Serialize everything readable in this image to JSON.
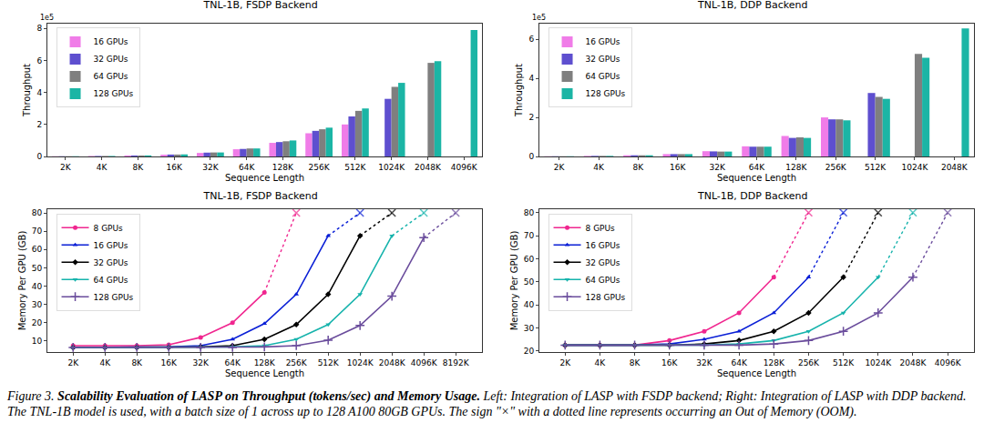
{
  "chart_data": [
    {
      "type": "bar",
      "title": "TNL-1B, FSDP Backend",
      "x_label": "Sequence Length",
      "y_label": "Throughput",
      "annotations": [
        {
          "text": "1e5"
        }
      ],
      "categories": [
        "2K",
        "4K",
        "8K",
        "16K",
        "32K",
        "64K",
        "128K",
        "256K",
        "512K",
        "1024K",
        "2048K",
        "4096K"
      ],
      "series": [
        {
          "name": "16 GPUs",
          "color": "#f07ce8",
          "values": [
            0.015,
            0.03,
            0.06,
            0.11,
            0.22,
            0.45,
            0.85,
            1.45,
            2.0,
            null,
            null,
            null
          ]
        },
        {
          "name": "32 GPUs",
          "color": "#5e4fcf",
          "values": [
            0.015,
            0.03,
            0.06,
            0.12,
            0.24,
            0.47,
            0.9,
            1.6,
            2.5,
            3.6,
            null,
            null
          ]
        },
        {
          "name": "64 GPUs",
          "color": "#7f7f7f",
          "values": [
            0.015,
            0.03,
            0.06,
            0.12,
            0.25,
            0.5,
            0.95,
            1.7,
            2.85,
            4.35,
            5.85,
            null
          ]
        },
        {
          "name": "128 GPUs",
          "color": "#1bb5a5",
          "values": [
            0.015,
            0.03,
            0.065,
            0.13,
            0.25,
            0.5,
            1.0,
            1.8,
            3.0,
            4.6,
            5.95,
            7.9
          ]
        }
      ],
      "ylim": [
        0,
        8.3
      ],
      "yticks": [
        0,
        2,
        4,
        6,
        8
      ],
      "grid": false,
      "legend": "upper left"
    },
    {
      "type": "bar",
      "title": "TNL-1B, DDP Backend",
      "x_label": "Sequence Length",
      "y_label": "Throughput",
      "annotations": [
        {
          "text": "1e5"
        }
      ],
      "categories": [
        "2K",
        "4K",
        "8K",
        "16K",
        "32K",
        "64K",
        "128K",
        "256K",
        "512K",
        "1024K",
        "2048K"
      ],
      "series": [
        {
          "name": "16 GPUs",
          "color": "#f07ce8",
          "values": [
            0.012,
            0.03,
            0.06,
            0.12,
            0.27,
            0.52,
            1.05,
            2.0,
            null,
            null,
            null
          ]
        },
        {
          "name": "32 GPUs",
          "color": "#5e4fcf",
          "values": [
            0.012,
            0.03,
            0.06,
            0.12,
            0.26,
            0.5,
            0.95,
            1.9,
            3.25,
            null,
            null
          ]
        },
        {
          "name": "64 GPUs",
          "color": "#7f7f7f",
          "values": [
            0.012,
            0.03,
            0.06,
            0.12,
            0.25,
            0.5,
            0.98,
            1.9,
            3.05,
            5.25,
            null
          ]
        },
        {
          "name": "128 GPUs",
          "color": "#1bb5a5",
          "values": [
            0.012,
            0.03,
            0.06,
            0.12,
            0.25,
            0.5,
            0.95,
            1.85,
            2.95,
            5.05,
            6.55
          ]
        }
      ],
      "ylim": [
        0,
        6.8
      ],
      "yticks": [
        0,
        2,
        4,
        6
      ],
      "grid": false,
      "legend": "upper left"
    },
    {
      "type": "line",
      "title": "TNL-1B, FSDP Backend",
      "x_label": "Sequence Length",
      "y_label": "Memory Per GPU (GB)",
      "categories": [
        "2K",
        "4K",
        "8K",
        "16K",
        "32K",
        "64K",
        "128K",
        "256K",
        "512K",
        "1024K",
        "2048K",
        "4096K",
        "8192K"
      ],
      "series": [
        {
          "name": "8 GPUs",
          "color": "#f0268f",
          "marker": "circle",
          "values": [
            7.5,
            7.5,
            7.5,
            8,
            12,
            20,
            36.5,
            null,
            null,
            null,
            null,
            null,
            null
          ],
          "oom": {
            "x": "256K",
            "y": 80
          }
        },
        {
          "name": "16 GPUs",
          "color": "#0a1fd6",
          "marker": "triangle-up",
          "values": [
            6.5,
            6.5,
            6.5,
            6.8,
            7.5,
            11,
            19.5,
            35.5,
            67.5,
            null,
            null,
            null,
            null
          ],
          "oom": {
            "x": "1024K",
            "y": 80
          }
        },
        {
          "name": "32 GPUs",
          "color": "#000000",
          "marker": "diamond",
          "values": [
            6.5,
            6.5,
            6.5,
            6.5,
            6.8,
            7.5,
            11,
            19,
            35.5,
            67.5,
            null,
            null,
            null
          ],
          "oom": {
            "x": "2048K",
            "y": 80
          }
        },
        {
          "name": "64 GPUs",
          "color": "#16b3ac",
          "marker": "triangle-down",
          "values": [
            6.5,
            6.5,
            6.5,
            6.5,
            6.5,
            6.8,
            7.5,
            11,
            19,
            35.5,
            67.5,
            null,
            null
          ],
          "oom": {
            "x": "4096K",
            "y": 80
          }
        },
        {
          "name": "128 GPUs",
          "color": "#6a4c9c",
          "marker": "cross",
          "values": [
            6.5,
            6.5,
            6.5,
            6.5,
            6.5,
            6.5,
            6.8,
            7.5,
            10.5,
            18.5,
            34.5,
            66.5,
            null
          ],
          "oom": {
            "x": "8192K",
            "y": 80
          }
        }
      ],
      "ylim": [
        4,
        82
      ],
      "yticks": [
        10,
        20,
        30,
        40,
        50,
        60,
        70,
        80
      ],
      "grid": false,
      "legend": "upper left"
    },
    {
      "type": "line",
      "title": "TNL-1B, DDP Backend",
      "x_label": "Sequence Length",
      "y_label": "Memory Per GPU (GB)",
      "categories": [
        "2K",
        "4K",
        "8K",
        "16K",
        "32K",
        "64K",
        "128K",
        "256K",
        "512K",
        "1024K",
        "2048K",
        "4096K"
      ],
      "series": [
        {
          "name": "8 GPUs",
          "color": "#f0268f",
          "marker": "circle",
          "values": [
            22.5,
            22.5,
            22.5,
            24.5,
            28.5,
            36.5,
            52,
            null,
            null,
            null,
            null,
            null
          ],
          "oom": {
            "x": "256K",
            "y": 80
          }
        },
        {
          "name": "16 GPUs",
          "color": "#0a1fd6",
          "marker": "triangle-up",
          "values": [
            22.5,
            22.5,
            22.5,
            23,
            25,
            28.5,
            36.5,
            52,
            null,
            null,
            null,
            null
          ],
          "oom": {
            "x": "512K",
            "y": 80
          }
        },
        {
          "name": "32 GPUs",
          "color": "#000000",
          "marker": "diamond",
          "values": [
            22.5,
            22.5,
            22.5,
            22.5,
            23,
            24.5,
            28.5,
            36.5,
            52,
            null,
            null,
            null
          ],
          "oom": {
            "x": "1024K",
            "y": 80
          }
        },
        {
          "name": "64 GPUs",
          "color": "#16b3ac",
          "marker": "triangle-down",
          "values": [
            22.5,
            22.5,
            22.5,
            22.5,
            22.5,
            23,
            24.5,
            28.5,
            36.5,
            52,
            null,
            null
          ],
          "oom": {
            "x": "2048K",
            "y": 80
          }
        },
        {
          "name": "128 GPUs",
          "color": "#6a4c9c",
          "marker": "cross",
          "values": [
            22.5,
            22.5,
            22.5,
            22.5,
            22.5,
            22.5,
            23,
            24.5,
            28.5,
            36.5,
            52,
            null
          ],
          "oom": {
            "x": "4096K",
            "y": 80
          }
        }
      ],
      "ylim": [
        19.5,
        81.5
      ],
      "yticks": [
        20,
        30,
        40,
        50,
        60,
        70,
        80
      ],
      "grid": false,
      "legend": "upper left"
    }
  ],
  "caption": {
    "label": "Figure 3.",
    "bold": "Scalability Evaluation of LASP on Throughput (tokens/sec) and Memory Usage.",
    "text": "Left: Integration of LASP with FSDP backend; Right: Integration of LASP with DDP backend. The TNL-1B model is used, with a batch size of 1 across up to 128 A100 80GB GPUs. The sign \"×\" with a dotted line represents occurring an Out of Memory (OOM)."
  }
}
